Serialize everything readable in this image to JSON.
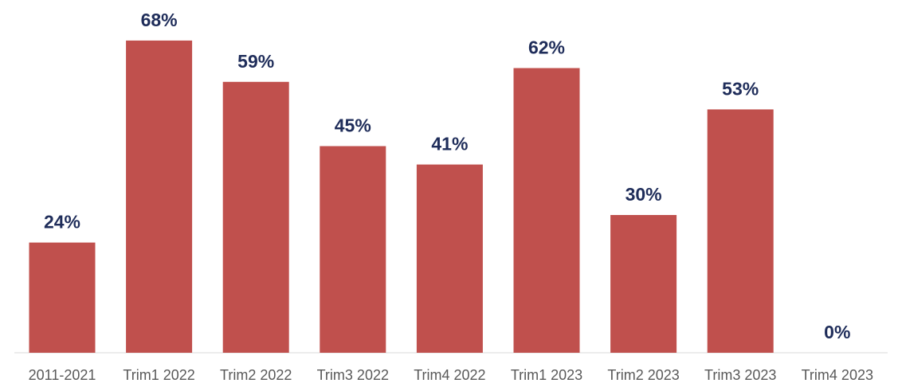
{
  "chart_data": {
    "type": "bar",
    "categories": [
      "2011-2021",
      "Trim1 2022",
      "Trim2 2022",
      "Trim3 2022",
      "Trim4 2022",
      "Trim1 2023",
      "Trim2 2023",
      "Trim3 2023",
      "Trim4 2023"
    ],
    "values": [
      24,
      68,
      59,
      45,
      41,
      62,
      30,
      53,
      0
    ],
    "data_labels": [
      "24%",
      "68%",
      "59%",
      "45%",
      "41%",
      "62%",
      "30%",
      "53%",
      "0%"
    ],
    "unit": "%",
    "ylim": [
      0,
      80
    ],
    "grid": false,
    "legend": "none",
    "colors": {
      "bar": "#c0504d",
      "data_label": "#1f2d5a",
      "category_label": "#595959",
      "axis_line": "#d9d9d9"
    }
  }
}
